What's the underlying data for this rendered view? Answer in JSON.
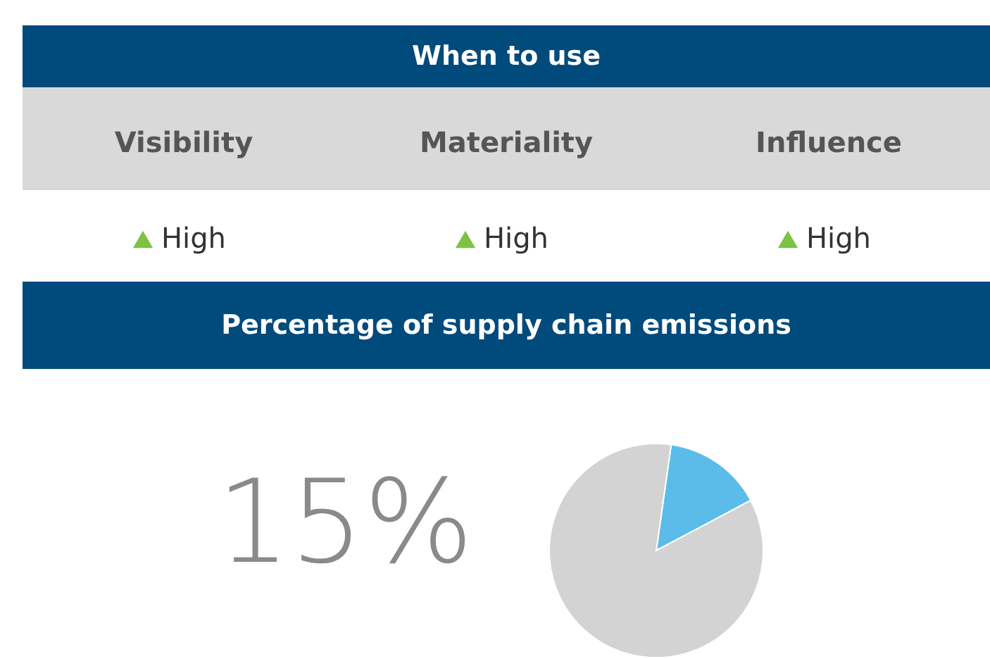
{
  "chart_data": [
    {
      "type": "other",
      "title": "When to use",
      "categories": [
        "Visibility",
        "Materiality",
        "Influence"
      ],
      "annotations": [
        "High",
        "High",
        "High"
      ],
      "color": "#7dc242"
    },
    {
      "type": "pie",
      "title": "Percentage of supply chain emissions",
      "categories": [
        null,
        null
      ],
      "values": [
        15,
        85
      ],
      "colors": [
        "#5bbcea",
        "#d3d3d3"
      ],
      "annotations": [
        "15%"
      ]
    }
  ]
}
